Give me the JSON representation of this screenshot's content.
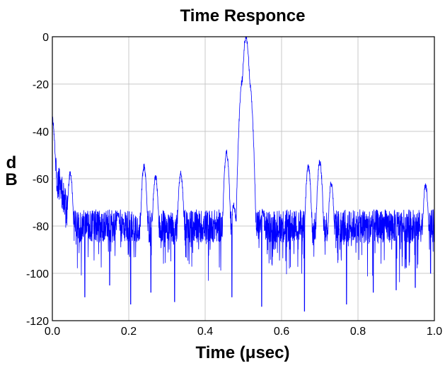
{
  "chart_data": {
    "type": "line",
    "title": "Time Responce",
    "xlabel": "Time (μsec)",
    "ylabel": "dB",
    "xlim": [
      0.0,
      1.0
    ],
    "ylim": [
      -120,
      0
    ],
    "x_ticks": [
      "0.0",
      "0.2",
      "0.4",
      "0.6",
      "0.8",
      "1.0"
    ],
    "y_ticks": [
      "0",
      "-20",
      "-40",
      "-60",
      "-80",
      "-100",
      "-120"
    ],
    "grid": true,
    "line_color": "#0000ff",
    "features": [
      {
        "x": 0.0,
        "y": -35
      },
      {
        "x": 0.005,
        "y": -55
      },
      {
        "x": 0.02,
        "y": -68
      },
      {
        "x": 0.047,
        "y": -58
      },
      {
        "x": 0.172,
        "y": -75
      },
      {
        "x": 0.24,
        "y": -55
      },
      {
        "x": 0.27,
        "y": -59
      },
      {
        "x": 0.336,
        "y": -58
      },
      {
        "x": 0.456,
        "y": -49
      },
      {
        "x": 0.475,
        "y": -71
      },
      {
        "x": 0.498,
        "y": -18
      },
      {
        "x": 0.507,
        "y": 0
      },
      {
        "x": 0.516,
        "y": -20
      },
      {
        "x": 0.55,
        "y": -74
      },
      {
        "x": 0.67,
        "y": -55
      },
      {
        "x": 0.7,
        "y": -53
      },
      {
        "x": 0.73,
        "y": -62
      },
      {
        "x": 0.977,
        "y": -63
      }
    ],
    "dips": [
      {
        "x": 0.085,
        "y": -110
      },
      {
        "x": 0.15,
        "y": -105
      },
      {
        "x": 0.205,
        "y": -113
      },
      {
        "x": 0.258,
        "y": -108
      },
      {
        "x": 0.32,
        "y": -112
      },
      {
        "x": 0.47,
        "y": -110
      },
      {
        "x": 0.548,
        "y": -114
      },
      {
        "x": 0.66,
        "y": -116
      },
      {
        "x": 0.77,
        "y": -113
      },
      {
        "x": 0.84,
        "y": -108
      },
      {
        "x": 0.9,
        "y": -107
      },
      {
        "x": 0.95,
        "y": -106
      },
      {
        "x": 0.99,
        "y": -100
      }
    ]
  }
}
